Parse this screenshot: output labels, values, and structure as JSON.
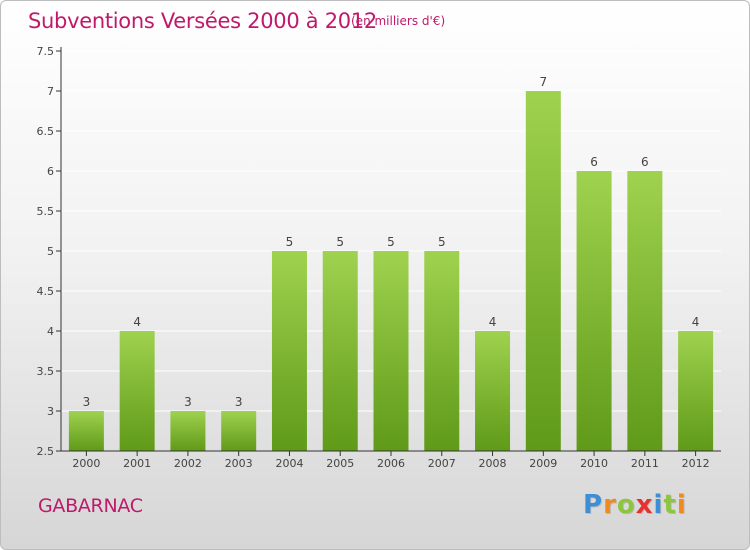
{
  "title": "Subventions Versées 2000 à 2012",
  "unit_note": "(en milliers d'€)",
  "commune": "GABARNAC",
  "logo": {
    "letters": [
      "P",
      "r",
      "o",
      "x",
      "i",
      "t",
      "i"
    ],
    "colors": [
      "#3a8fd6",
      "#f08a1c",
      "#8cc63f",
      "#e8312f",
      "#3a8fd6",
      "#8cc63f",
      "#f08a1c"
    ]
  },
  "colors": {
    "title": "#c0196b",
    "bar_light": "#9fd24f",
    "bar_dark": "#5f9a18",
    "axis": "#333333",
    "grid": "#ffffff"
  },
  "chart_data": {
    "type": "bar",
    "title": "Subventions Versées 2000 à 2012",
    "categories": [
      "2000",
      "2001",
      "2002",
      "2003",
      "2004",
      "2005",
      "2006",
      "2007",
      "2008",
      "2009",
      "2010",
      "2011",
      "2012"
    ],
    "values": [
      3,
      4,
      3,
      3,
      5,
      5,
      5,
      5,
      4,
      7,
      6,
      6,
      4
    ],
    "ylim": [
      2.5,
      7.5
    ],
    "yticks": [
      "2.5",
      "3",
      "3.5",
      "4",
      "4.5",
      "5",
      "5.5",
      "6",
      "6.5",
      "7",
      "7.5"
    ],
    "ytick_values": [
      2.5,
      3,
      3.5,
      4,
      4.5,
      5,
      5.5,
      6,
      6.5,
      7,
      7.5
    ],
    "grid": true,
    "data_labels": true
  }
}
